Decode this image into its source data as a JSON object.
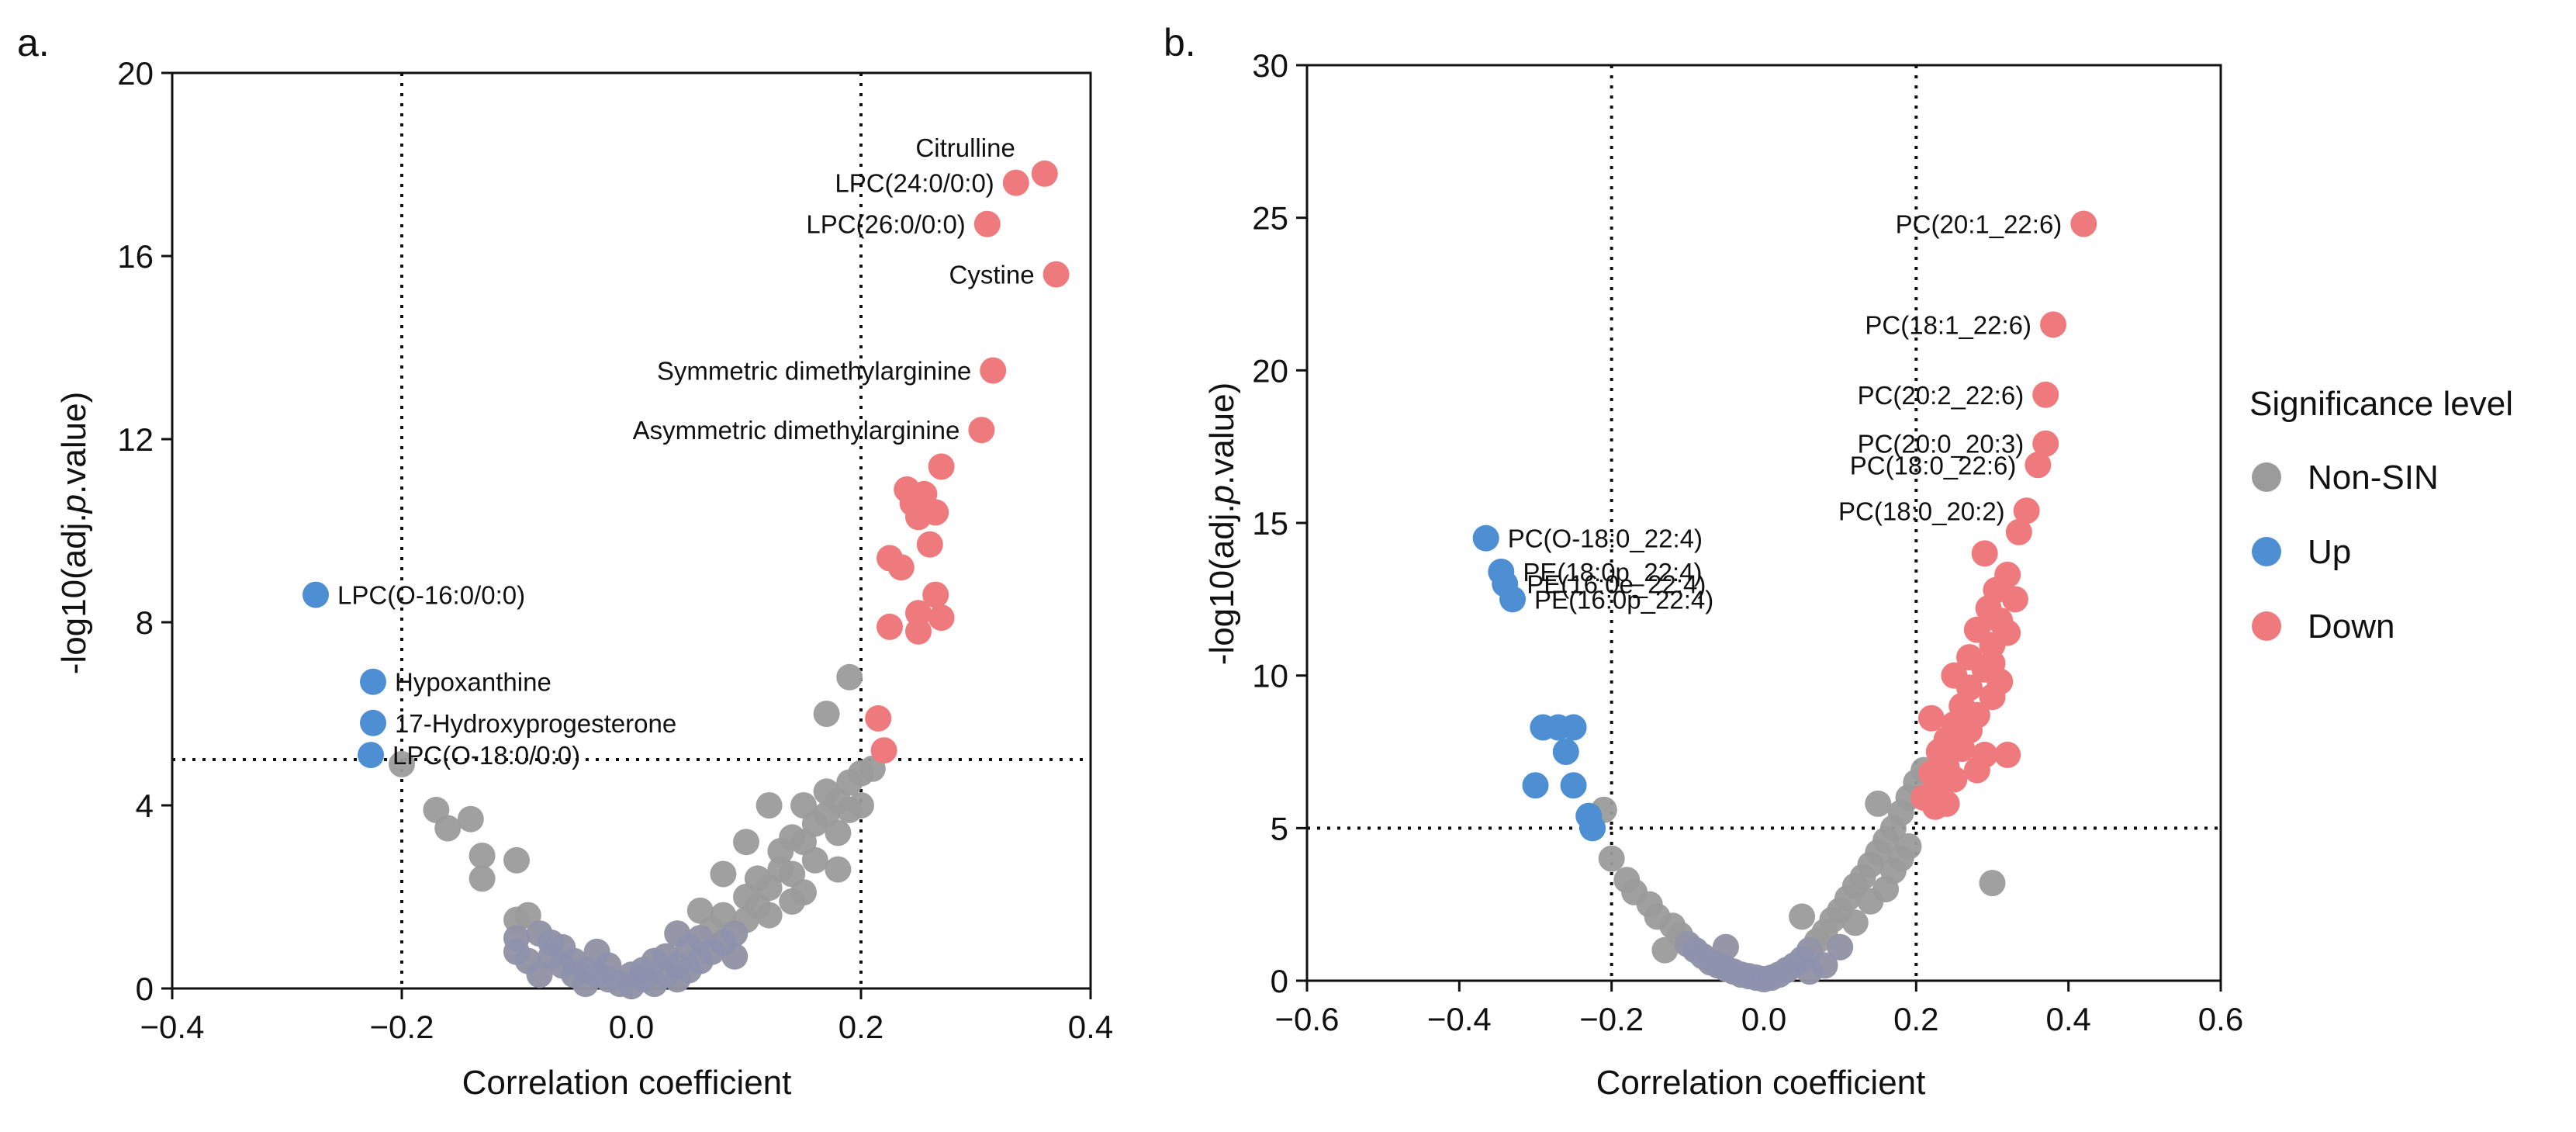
{
  "colors": {
    "non_sin": "#9b9b9b",
    "up": "#4e8fd4",
    "down": "#ee7a7d",
    "axis": "#111111",
    "background": "#ffffff"
  },
  "legend": {
    "title": "Significance level",
    "items": [
      {
        "key": "non_sin",
        "label": "Non-SIN"
      },
      {
        "key": "up",
        "label": "Up"
      },
      {
        "key": "down",
        "label": "Down"
      }
    ]
  },
  "chart_data": [
    {
      "panel": "a.",
      "type": "scatter",
      "title": "",
      "xlabel": "Correlation coefficient",
      "ylabel": "-log10(adj.p.value)",
      "xlim": [
        -0.4,
        0.4
      ],
      "ylim": [
        0,
        20
      ],
      "xticks": [
        -0.4,
        -0.2,
        0.0,
        0.2,
        0.4
      ],
      "xtick_labels": [
        "−0.4",
        "−0.2",
        "0.0",
        "0.2",
        "0.4"
      ],
      "yticks": [
        0,
        4,
        8,
        12,
        16,
        20
      ],
      "ytick_labels": [
        "0",
        "4",
        "8",
        "12",
        "16",
        "20"
      ],
      "vlines": [
        -0.2,
        0.2
      ],
      "hline": 5,
      "grid": false,
      "series": [
        {
          "name": "Non-SIN",
          "color_key": "non_sin",
          "points": [
            [
              -0.2,
              4.9
            ],
            [
              -0.17,
              3.9
            ],
            [
              -0.16,
              3.5
            ],
            [
              -0.14,
              3.7
            ],
            [
              -0.13,
              2.9
            ],
            [
              -0.13,
              2.4
            ],
            [
              -0.1,
              2.8
            ],
            [
              -0.1,
              1.5
            ],
            [
              -0.1,
              1.1
            ],
            [
              -0.09,
              1.6
            ],
            [
              -0.1,
              0.8
            ],
            [
              -0.09,
              0.6
            ],
            [
              -0.08,
              1.2
            ],
            [
              -0.07,
              1.0
            ],
            [
              -0.07,
              0.7
            ],
            [
              -0.06,
              0.9
            ],
            [
              -0.06,
              0.5
            ],
            [
              -0.05,
              0.6
            ],
            [
              -0.05,
              0.3
            ],
            [
              -0.04,
              0.4
            ],
            [
              -0.04,
              0.1
            ],
            [
              -0.03,
              0.3
            ],
            [
              -0.02,
              0.2
            ],
            [
              -0.02,
              0.5
            ],
            [
              -0.01,
              0.1
            ],
            [
              0.0,
              0.05
            ],
            [
              0.0,
              0.3
            ],
            [
              0.01,
              0.2
            ],
            [
              0.01,
              0.4
            ],
            [
              0.02,
              0.6
            ],
            [
              0.02,
              0.1
            ],
            [
              0.03,
              0.3
            ],
            [
              0.03,
              0.7
            ],
            [
              0.04,
              0.5
            ],
            [
              0.04,
              0.2
            ],
            [
              0.05,
              0.9
            ],
            [
              0.05,
              0.4
            ],
            [
              0.06,
              0.6
            ],
            [
              0.06,
              1.1
            ],
            [
              0.07,
              0.8
            ],
            [
              0.07,
              1.3
            ],
            [
              0.08,
              1.0
            ],
            [
              0.08,
              1.6
            ],
            [
              0.09,
              1.2
            ],
            [
              0.09,
              0.7
            ],
            [
              0.1,
              1.5
            ],
            [
              0.1,
              2.0
            ],
            [
              0.11,
              1.8
            ],
            [
              0.11,
              2.4
            ],
            [
              0.12,
              2.2
            ],
            [
              0.12,
              1.6
            ],
            [
              0.13,
              2.6
            ],
            [
              0.13,
              3.0
            ],
            [
              0.14,
              2.5
            ],
            [
              0.14,
              3.3
            ],
            [
              0.15,
              3.2
            ],
            [
              0.15,
              4.0
            ],
            [
              0.16,
              3.6
            ],
            [
              0.16,
              2.8
            ],
            [
              0.17,
              4.3
            ],
            [
              0.17,
              3.8
            ],
            [
              0.18,
              4.1
            ],
            [
              0.18,
              3.4
            ],
            [
              0.19,
              4.5
            ],
            [
              0.19,
              3.9
            ],
            [
              0.2,
              4.7
            ],
            [
              0.2,
              4.0
            ],
            [
              0.21,
              4.8
            ],
            [
              0.17,
              6.0
            ],
            [
              0.19,
              6.8
            ],
            [
              0.1,
              3.2
            ],
            [
              0.12,
              4.0
            ],
            [
              0.08,
              2.5
            ],
            [
              0.06,
              1.7
            ],
            [
              0.04,
              1.2
            ],
            [
              -0.03,
              0.8
            ],
            [
              -0.08,
              0.3
            ],
            [
              0.15,
              2.1
            ],
            [
              0.18,
              2.6
            ],
            [
              0.14,
              1.9
            ]
          ]
        },
        {
          "name": "Up",
          "color_key": "up",
          "points": [
            [
              -0.275,
              8.6
            ],
            [
              -0.225,
              6.7
            ],
            [
              -0.225,
              5.8
            ],
            [
              -0.227,
              5.1
            ]
          ]
        },
        {
          "name": "Down",
          "color_key": "down",
          "points": [
            [
              0.36,
              17.8
            ],
            [
              0.335,
              17.6
            ],
            [
              0.31,
              16.7
            ],
            [
              0.37,
              15.6
            ],
            [
              0.315,
              13.5
            ],
            [
              0.305,
              12.2
            ],
            [
              0.27,
              11.4
            ],
            [
              0.24,
              10.9
            ],
            [
              0.245,
              10.6
            ],
            [
              0.255,
              10.8
            ],
            [
              0.25,
              10.3
            ],
            [
              0.265,
              10.4
            ],
            [
              0.26,
              9.7
            ],
            [
              0.225,
              9.4
            ],
            [
              0.235,
              9.2
            ],
            [
              0.265,
              8.6
            ],
            [
              0.25,
              8.2
            ],
            [
              0.27,
              8.1
            ],
            [
              0.225,
              7.9
            ],
            [
              0.25,
              7.8
            ],
            [
              0.215,
              5.9
            ],
            [
              0.22,
              5.2
            ]
          ]
        }
      ],
      "annotations": [
        {
          "text": "Citrulline",
          "x": 0.36,
          "y": 17.8
        },
        {
          "text": "LPC(24:0/0:0)",
          "x": 0.335,
          "y": 17.6
        },
        {
          "text": "LPC(26:0/0:0)",
          "x": 0.31,
          "y": 16.7
        },
        {
          "text": "Cystine",
          "x": 0.37,
          "y": 15.6
        },
        {
          "text": "Symmetric dimethylarginine",
          "x": 0.315,
          "y": 13.5
        },
        {
          "text": "Asymmetric dimethylarginine",
          "x": 0.305,
          "y": 12.2
        },
        {
          "text": "LPC(O-16:0/0:0)",
          "x": -0.275,
          "y": 8.6
        },
        {
          "text": "Hypoxanthine",
          "x": -0.225,
          "y": 6.7
        },
        {
          "text": "17-Hydroxyprogesterone",
          "x": -0.225,
          "y": 5.8
        },
        {
          "text": "LPC(O-18:0/0:0)",
          "x": -0.227,
          "y": 5.1
        }
      ]
    },
    {
      "panel": "b.",
      "type": "scatter",
      "title": "",
      "xlabel": "Correlation coefficient",
      "ylabel": "-log10(adj.p.value)",
      "xlim": [
        -0.6,
        0.6
      ],
      "ylim": [
        0,
        30
      ],
      "xticks": [
        -0.6,
        -0.4,
        -0.2,
        0.0,
        0.2,
        0.4,
        0.6
      ],
      "xtick_labels": [
        "−0.6",
        "−0.4",
        "−0.2",
        "0.0",
        "0.2",
        "0.4",
        "0.6"
      ],
      "yticks": [
        0,
        5,
        10,
        15,
        20,
        25,
        30
      ],
      "ytick_labels": [
        "0",
        "5",
        "10",
        "15",
        "20",
        "25",
        "30"
      ],
      "vlines": [
        -0.2,
        0.2
      ],
      "hline": 5,
      "grid": false,
      "series": [
        {
          "name": "Non-SIN",
          "color_key": "non_sin",
          "points": [
            [
              -0.21,
              5.6
            ],
            [
              -0.2,
              4.0
            ],
            [
              -0.18,
              3.3
            ],
            [
              -0.17,
              2.9
            ],
            [
              -0.15,
              2.5
            ],
            [
              -0.14,
              2.1
            ],
            [
              -0.12,
              1.8
            ],
            [
              -0.11,
              1.5
            ],
            [
              -0.1,
              1.2
            ],
            [
              -0.09,
              1.0
            ],
            [
              -0.08,
              0.8
            ],
            [
              -0.07,
              0.6
            ],
            [
              -0.06,
              0.5
            ],
            [
              -0.05,
              0.4
            ],
            [
              -0.04,
              0.3
            ],
            [
              -0.03,
              0.2
            ],
            [
              -0.02,
              0.15
            ],
            [
              -0.01,
              0.1
            ],
            [
              0.0,
              0.05
            ],
            [
              0.01,
              0.1
            ],
            [
              0.02,
              0.2
            ],
            [
              0.03,
              0.35
            ],
            [
              0.04,
              0.5
            ],
            [
              0.05,
              0.7
            ],
            [
              0.06,
              1.0
            ],
            [
              0.07,
              1.3
            ],
            [
              0.08,
              1.6
            ],
            [
              0.09,
              2.0
            ],
            [
              0.1,
              2.3
            ],
            [
              0.11,
              2.7
            ],
            [
              0.12,
              3.1
            ],
            [
              0.13,
              3.4
            ],
            [
              0.14,
              3.8
            ],
            [
              0.15,
              4.2
            ],
            [
              0.16,
              4.6
            ],
            [
              0.17,
              5.0
            ],
            [
              0.18,
              5.5
            ],
            [
              0.19,
              6.0
            ],
            [
              0.2,
              6.5
            ],
            [
              0.21,
              6.9
            ],
            [
              0.15,
              5.8
            ],
            [
              0.3,
              3.2
            ],
            [
              0.05,
              2.1
            ],
            [
              0.08,
              0.5
            ],
            [
              -0.05,
              1.1
            ],
            [
              0.12,
              1.9
            ],
            [
              0.16,
              3.0
            ],
            [
              0.18,
              4.0
            ],
            [
              0.1,
              1.1
            ],
            [
              0.14,
              2.6
            ],
            [
              0.19,
              4.4
            ],
            [
              0.17,
              3.6
            ],
            [
              -0.13,
              1.0
            ],
            [
              0.06,
              0.3
            ]
          ]
        },
        {
          "name": "Up",
          "color_key": "up",
          "points": [
            [
              -0.365,
              14.5
            ],
            [
              -0.345,
              13.4
            ],
            [
              -0.34,
              13.0
            ],
            [
              -0.33,
              12.5
            ],
            [
              -0.29,
              8.3
            ],
            [
              -0.27,
              8.3
            ],
            [
              -0.25,
              8.3
            ],
            [
              -0.26,
              7.5
            ],
            [
              -0.25,
              6.4
            ],
            [
              -0.3,
              6.4
            ],
            [
              -0.23,
              5.4
            ],
            [
              -0.225,
              5.0
            ]
          ]
        },
        {
          "name": "Down",
          "color_key": "down",
          "points": [
            [
              0.42,
              24.8
            ],
            [
              0.38,
              21.5
            ],
            [
              0.37,
              19.2
            ],
            [
              0.37,
              17.6
            ],
            [
              0.36,
              16.9
            ],
            [
              0.345,
              15.4
            ],
            [
              0.335,
              14.7
            ],
            [
              0.29,
              14.0
            ],
            [
              0.32,
              13.3
            ],
            [
              0.305,
              12.8
            ],
            [
              0.33,
              12.5
            ],
            [
              0.295,
              12.2
            ],
            [
              0.31,
              11.8
            ],
            [
              0.28,
              11.5
            ],
            [
              0.3,
              11.0
            ],
            [
              0.27,
              10.6
            ],
            [
              0.29,
              10.2
            ],
            [
              0.25,
              10.0
            ],
            [
              0.27,
              9.6
            ],
            [
              0.3,
              9.3
            ],
            [
              0.26,
              9.0
            ],
            [
              0.28,
              8.7
            ],
            [
              0.22,
              8.6
            ],
            [
              0.25,
              8.4
            ],
            [
              0.27,
              8.2
            ],
            [
              0.24,
              7.9
            ],
            [
              0.26,
              7.6
            ],
            [
              0.23,
              7.5
            ],
            [
              0.29,
              7.4
            ],
            [
              0.32,
              7.4
            ],
            [
              0.24,
              7.0
            ],
            [
              0.22,
              6.8
            ],
            [
              0.25,
              6.6
            ],
            [
              0.23,
              6.3
            ],
            [
              0.21,
              6.0
            ],
            [
              0.24,
              5.8
            ],
            [
              0.225,
              5.7
            ],
            [
              0.3,
              10.4
            ],
            [
              0.31,
              9.8
            ],
            [
              0.26,
              8.1
            ],
            [
              0.28,
              6.9
            ],
            [
              0.32,
              11.4
            ]
          ]
        }
      ],
      "annotations": [
        {
          "text": "PC(20:1_22:6)",
          "x": 0.42,
          "y": 24.8
        },
        {
          "text": "PC(18:1_22:6)",
          "x": 0.38,
          "y": 21.5
        },
        {
          "text": "PC(20:2_22:6)",
          "x": 0.37,
          "y": 19.2
        },
        {
          "text": "PC(20:0_20:3)",
          "x": 0.37,
          "y": 17.6
        },
        {
          "text": "PC(18:0_22:6)",
          "x": 0.36,
          "y": 16.9
        },
        {
          "text": "PC(18:0_20:2)",
          "x": 0.345,
          "y": 15.4
        },
        {
          "text": "PC(O-18:0_22:4)",
          "x": -0.365,
          "y": 14.5
        },
        {
          "text": "PE(18:0p_22:4)",
          "x": -0.345,
          "y": 13.4
        },
        {
          "text": "PE(16:0e_22:4)",
          "x": -0.34,
          "y": 13.0
        },
        {
          "text": "PE(16:0p_22:4)",
          "x": -0.33,
          "y": 12.5
        }
      ]
    }
  ]
}
